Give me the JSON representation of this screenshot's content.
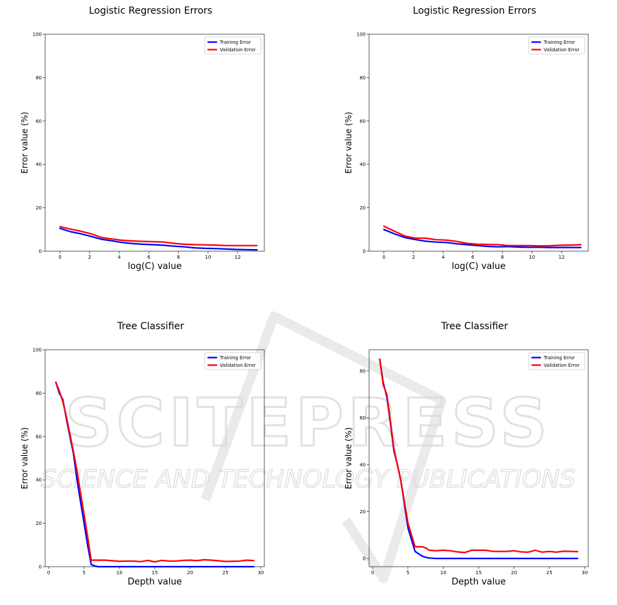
{
  "watermark": {
    "main": "SCITEPRESS",
    "sub": "SCIENCE AND TECHNOLOGY PUBLICATIONS",
    "color": "#d9d9d9"
  },
  "colors": {
    "training": "#0000ff",
    "validation": "#ff0000",
    "axes": "#333333"
  },
  "chart_data": [
    {
      "type": "line",
      "title": "Logistic Regression Errors",
      "xlabel": "log(C) value",
      "ylabel": "Error value (%)",
      "xlim": [
        -1,
        13.8
      ],
      "ylim": [
        0,
        100
      ],
      "xticks": [
        0,
        2,
        4,
        6,
        8,
        10,
        12
      ],
      "yticks": [
        0,
        20,
        40,
        60,
        80,
        100
      ],
      "legend": "upper-right",
      "x": [
        0,
        0.7,
        1.4,
        2.1,
        2.8,
        3.5,
        4.2,
        4.9,
        5.6,
        6.3,
        7.0,
        7.7,
        8.4,
        9.1,
        9.8,
        10.5,
        11.2,
        11.9,
        12.6,
        13.3
      ],
      "series": [
        {
          "name": "Training Error",
          "color": "#0000ff",
          "values": [
            10.5,
            9.0,
            8.0,
            6.8,
            5.5,
            4.8,
            4.0,
            3.5,
            3.2,
            3.0,
            2.7,
            2.3,
            2.0,
            1.5,
            1.3,
            1.2,
            1.0,
            0.8,
            0.7,
            0.6
          ]
        },
        {
          "name": "Validation Error",
          "color": "#ff0000",
          "values": [
            11.3,
            10.2,
            9.2,
            8.0,
            6.3,
            5.6,
            5.0,
            4.7,
            4.5,
            4.4,
            4.2,
            3.6,
            3.2,
            3.0,
            2.9,
            2.8,
            2.6,
            2.6,
            2.6,
            2.6
          ]
        }
      ]
    },
    {
      "type": "line",
      "title": "Logistic Regression Errors",
      "xlabel": "log(C) value",
      "ylabel": "Error value (%)",
      "xlim": [
        -1,
        13.8
      ],
      "ylim": [
        0,
        100
      ],
      "xticks": [
        0,
        2,
        4,
        6,
        8,
        10,
        12
      ],
      "yticks": [
        0,
        20,
        40,
        60,
        80,
        100
      ],
      "legend": "upper-right",
      "x": [
        0,
        0.7,
        1.4,
        2.1,
        2.8,
        3.5,
        4.2,
        4.9,
        5.6,
        6.3,
        7.0,
        7.7,
        8.4,
        9.1,
        9.8,
        10.5,
        11.2,
        11.9,
        12.6,
        13.3
      ],
      "series": [
        {
          "name": "Training Error",
          "color": "#0000ff",
          "values": [
            10.0,
            8.0,
            6.3,
            5.4,
            4.6,
            4.2,
            4.0,
            3.4,
            3.0,
            2.6,
            2.2,
            2.0,
            2.1,
            1.9,
            1.8,
            1.8,
            1.7,
            1.7,
            1.7,
            1.7
          ]
        },
        {
          "name": "Validation Error",
          "color": "#ff0000",
          "values": [
            11.5,
            9.2,
            7.0,
            6.0,
            6.0,
            5.3,
            5.1,
            4.5,
            3.6,
            3.2,
            3.1,
            3.0,
            2.6,
            2.6,
            2.6,
            2.4,
            2.5,
            2.7,
            2.8,
            3.0
          ]
        }
      ]
    },
    {
      "type": "line",
      "title": "Tree Classifier",
      "xlabel": "Depth value",
      "ylabel": "Error value (%)",
      "xlim": [
        -0.5,
        30.5
      ],
      "ylim": [
        0,
        100
      ],
      "xticks": [
        0,
        5,
        10,
        15,
        20,
        25,
        30
      ],
      "yticks": [
        0,
        20,
        40,
        60,
        80,
        100
      ],
      "legend": "upper-right",
      "x": [
        1,
        1.5,
        2,
        2.5,
        3,
        3.5,
        4,
        4.5,
        5,
        5.5,
        6,
        6.5,
        7,
        8,
        9,
        10,
        11,
        12,
        13,
        14,
        15,
        16,
        17,
        18,
        19,
        20,
        21,
        22,
        23,
        24,
        25,
        26,
        27,
        28,
        29
      ],
      "series": [
        {
          "name": "Training Error",
          "color": "#0000ff",
          "values": [
            85,
            80,
            77,
            68,
            60,
            52,
            40,
            30,
            20,
            10,
            1.0,
            0.3,
            0,
            0,
            0,
            0,
            0,
            0,
            0,
            0,
            0,
            0,
            0,
            0,
            0,
            0,
            0,
            0,
            0,
            0,
            0,
            0,
            0,
            0,
            0
          ]
        },
        {
          "name": "Validation Error",
          "color": "#ff0000",
          "values": [
            85,
            81,
            76,
            69,
            61,
            53,
            44,
            34,
            24,
            14,
            3.0,
            3.0,
            3.0,
            3.0,
            2.7,
            2.5,
            2.6,
            2.6,
            2.3,
            2.9,
            2.2,
            2.9,
            2.6,
            2.6,
            2.9,
            3.0,
            2.8,
            3.2,
            3.0,
            2.7,
            2.4,
            2.5,
            2.6,
            3.0,
            2.8
          ]
        }
      ]
    },
    {
      "type": "line",
      "title": "Tree Classifier",
      "xlabel": "Depth value",
      "ylabel": "Error value (%)",
      "xlim": [
        -0.5,
        30.5
      ],
      "ylim": [
        -3.5,
        89
      ],
      "xticks": [
        0,
        5,
        10,
        15,
        20,
        25,
        30
      ],
      "yticks": [
        0,
        20,
        40,
        60,
        80
      ],
      "legend": "upper-right",
      "x": [
        1,
        1.5,
        2,
        2.5,
        3,
        3.5,
        4,
        4.5,
        5,
        5.5,
        6,
        6.5,
        7,
        7.5,
        8,
        9,
        10,
        11,
        12,
        13,
        14,
        15,
        16,
        17,
        18,
        19,
        20,
        21,
        22,
        23,
        24,
        25,
        26,
        27,
        28,
        29
      ],
      "series": [
        {
          "name": "Training Error",
          "color": "#0000ff",
          "values": [
            85,
            75,
            69,
            58,
            46,
            40,
            33,
            23,
            13,
            8,
            3.0,
            2.0,
            1.0,
            0.5,
            0.2,
            0,
            0,
            0,
            0,
            0,
            0,
            0,
            0,
            0,
            0,
            0,
            0,
            0,
            0,
            0,
            0,
            0,
            0,
            0,
            0,
            0
          ]
        },
        {
          "name": "Validation Error",
          "color": "#ff0000",
          "values": [
            85,
            74,
            70,
            59,
            47,
            40,
            33,
            24,
            15,
            10,
            5.0,
            5.0,
            5.0,
            4.5,
            3.5,
            3.3,
            3.5,
            3.3,
            2.8,
            2.5,
            3.5,
            3.5,
            3.5,
            3.0,
            3.0,
            3.0,
            3.3,
            2.8,
            2.7,
            3.5,
            2.7,
            3.0,
            2.7,
            3.1,
            3.0,
            2.9
          ]
        }
      ]
    }
  ]
}
